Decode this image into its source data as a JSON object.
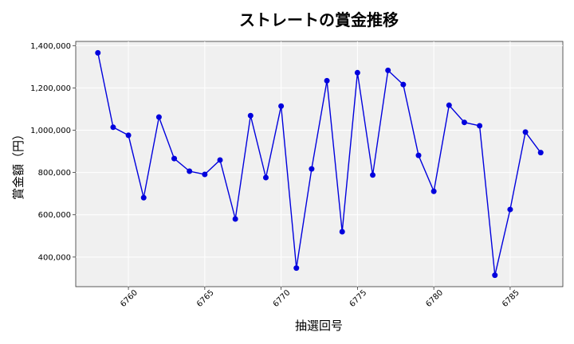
{
  "chart_data": {
    "type": "line",
    "title": "ストレートの賞金推移",
    "xlabel": "抽選回号",
    "ylabel": "賞金額（円）",
    "xlim": [
      6756.55,
      6788.45
    ],
    "ylim": [
      260000,
      1420000
    ],
    "xticks": [
      6760,
      6765,
      6770,
      6775,
      6780,
      6785
    ],
    "yticks": [
      400000,
      600000,
      800000,
      1000000,
      1200000,
      1400000
    ],
    "ytick_labels": [
      "400,000",
      "600,000",
      "800,000",
      "1,000,000",
      "1,200,000",
      "1,400,000"
    ],
    "grid": true,
    "series": [
      {
        "color": "#0000dd",
        "x": [
          6758,
          6759,
          6760,
          6761,
          6762,
          6763,
          6764,
          6765,
          6766,
          6767,
          6768,
          6769,
          6770,
          6771,
          6772,
          6773,
          6774,
          6775,
          6776,
          6777,
          6778,
          6779,
          6780,
          6781,
          6782,
          6783,
          6784,
          6785,
          6786,
          6787
        ],
        "y": [
          1366000,
          1014000,
          976000,
          681000,
          1062000,
          866000,
          806000,
          791000,
          859000,
          580000,
          1069000,
          776000,
          1114000,
          348000,
          817000,
          1234000,
          520000,
          1272000,
          788000,
          1283000,
          1216000,
          881000,
          711000,
          1118000,
          1037000,
          1021000,
          314000,
          625000,
          991000,
          894000
        ]
      }
    ]
  }
}
